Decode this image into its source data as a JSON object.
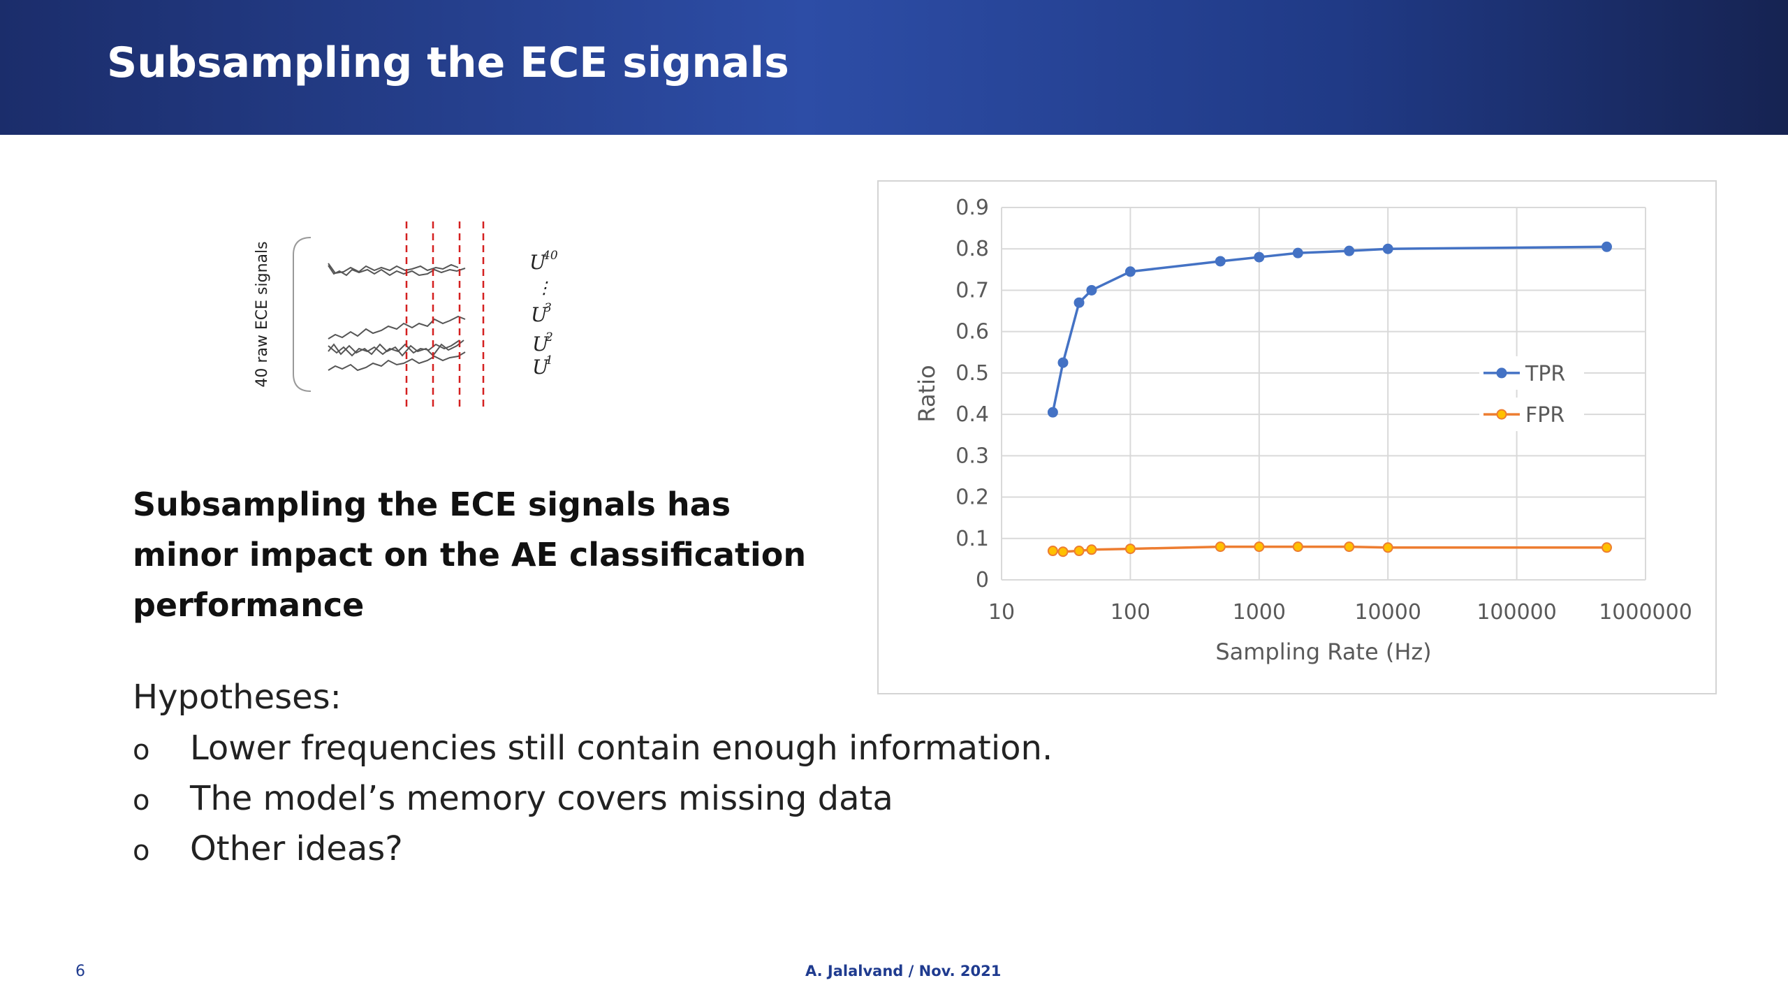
{
  "slide": {
    "title": "Subsampling the ECE signals",
    "headline": "Subsampling the ECE signals has minor impact on the AE classification performance",
    "hypotheses_label": "Hypotheses:",
    "bullets": [
      "Lower frequencies still contain enough information.",
      "The model’s memory covers missing data",
      "Other ideas?"
    ],
    "bullet_marker": "o",
    "page_number": "6",
    "footer": "A. Jalalvand / Nov. 2021",
    "header_colors": [
      "#1b2d6b",
      "#2d4da6",
      "#162352"
    ]
  },
  "figure": {
    "vertical_label": "40 raw ECE signals",
    "signal_labels": [
      "U",
      "40",
      "U",
      "3",
      "U",
      "2",
      "U",
      "1"
    ],
    "dots": "⋮"
  },
  "chart_data": {
    "type": "line",
    "xlabel": "Sampling Rate (Hz)",
    "ylabel": "Ratio",
    "x_scale": "log",
    "xlim": [
      10,
      1000000
    ],
    "ylim": [
      0,
      0.9
    ],
    "x_ticks": [
      "10",
      "100",
      "1000",
      "10000",
      "100000",
      "1000000"
    ],
    "y_ticks": [
      "0",
      "0.1",
      "0.2",
      "0.3",
      "0.4",
      "0.5",
      "0.6",
      "0.7",
      "0.8",
      "0.9"
    ],
    "grid": true,
    "legend_position": "right",
    "x": [
      25,
      30,
      40,
      50,
      100,
      500,
      1000,
      2000,
      5000,
      10000,
      500000
    ],
    "series": [
      {
        "name": "TPR",
        "color": "#4472c4",
        "values": [
          0.405,
          0.525,
          0.67,
          0.7,
          0.745,
          0.77,
          0.78,
          0.79,
          0.795,
          0.8,
          0.805
        ]
      },
      {
        "name": "FPR",
        "color": "#ed7d31",
        "values": [
          0.07,
          0.068,
          0.07,
          0.073,
          0.075,
          0.08,
          0.08,
          0.08,
          0.08,
          0.078,
          0.078
        ]
      }
    ]
  }
}
